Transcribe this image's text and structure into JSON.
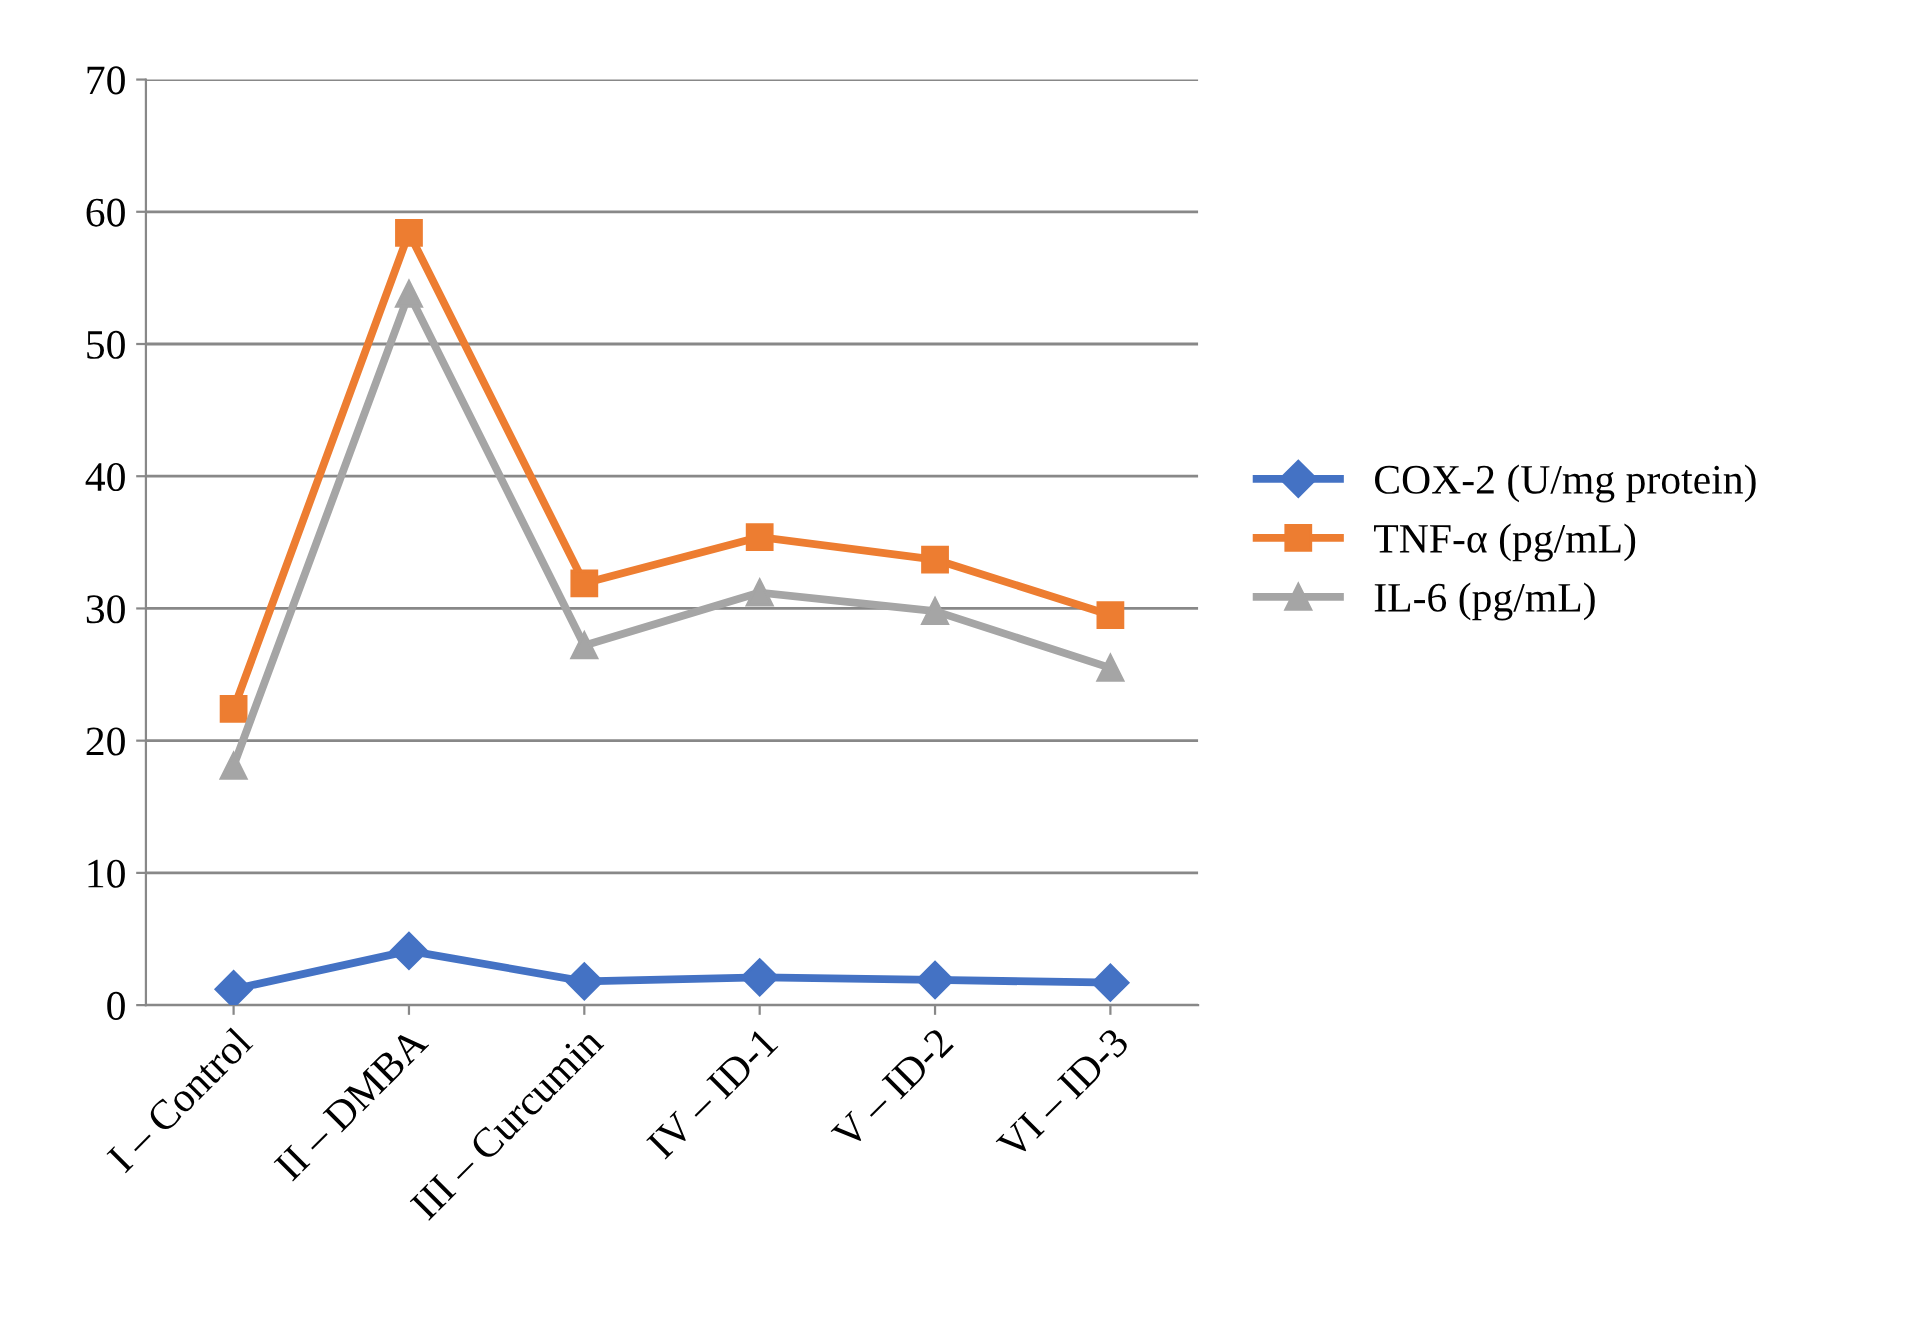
{
  "chart_data": {
    "type": "line",
    "categories": [
      "I – Control",
      "II – DMBA",
      "III – Curcumin",
      "IV – ID-1",
      "V – ID-2",
      "VI – ID-3"
    ],
    "series": [
      {
        "name": "COX-2 (U/mg protein)",
        "color": "#4472c4",
        "marker": "diamond",
        "values": [
          1.2,
          4.1,
          1.8,
          2.1,
          1.9,
          1.7
        ]
      },
      {
        "name": "TNF-α (pg/mL)",
        "color": "#ed7d31",
        "marker": "square",
        "values": [
          22.4,
          58.4,
          31.9,
          35.4,
          33.7,
          29.5
        ]
      },
      {
        "name": "IL-6 (pg/mL)",
        "color": "#a5a5a5",
        "marker": "triangle",
        "values": [
          18.1,
          53.8,
          27.2,
          31.2,
          29.8,
          25.5
        ]
      }
    ],
    "ylim": [
      0,
      70
    ],
    "yticks": [
      0,
      10,
      20,
      30,
      40,
      50,
      60,
      70
    ],
    "grid": "y",
    "legend": "right",
    "line_style": "solid"
  }
}
